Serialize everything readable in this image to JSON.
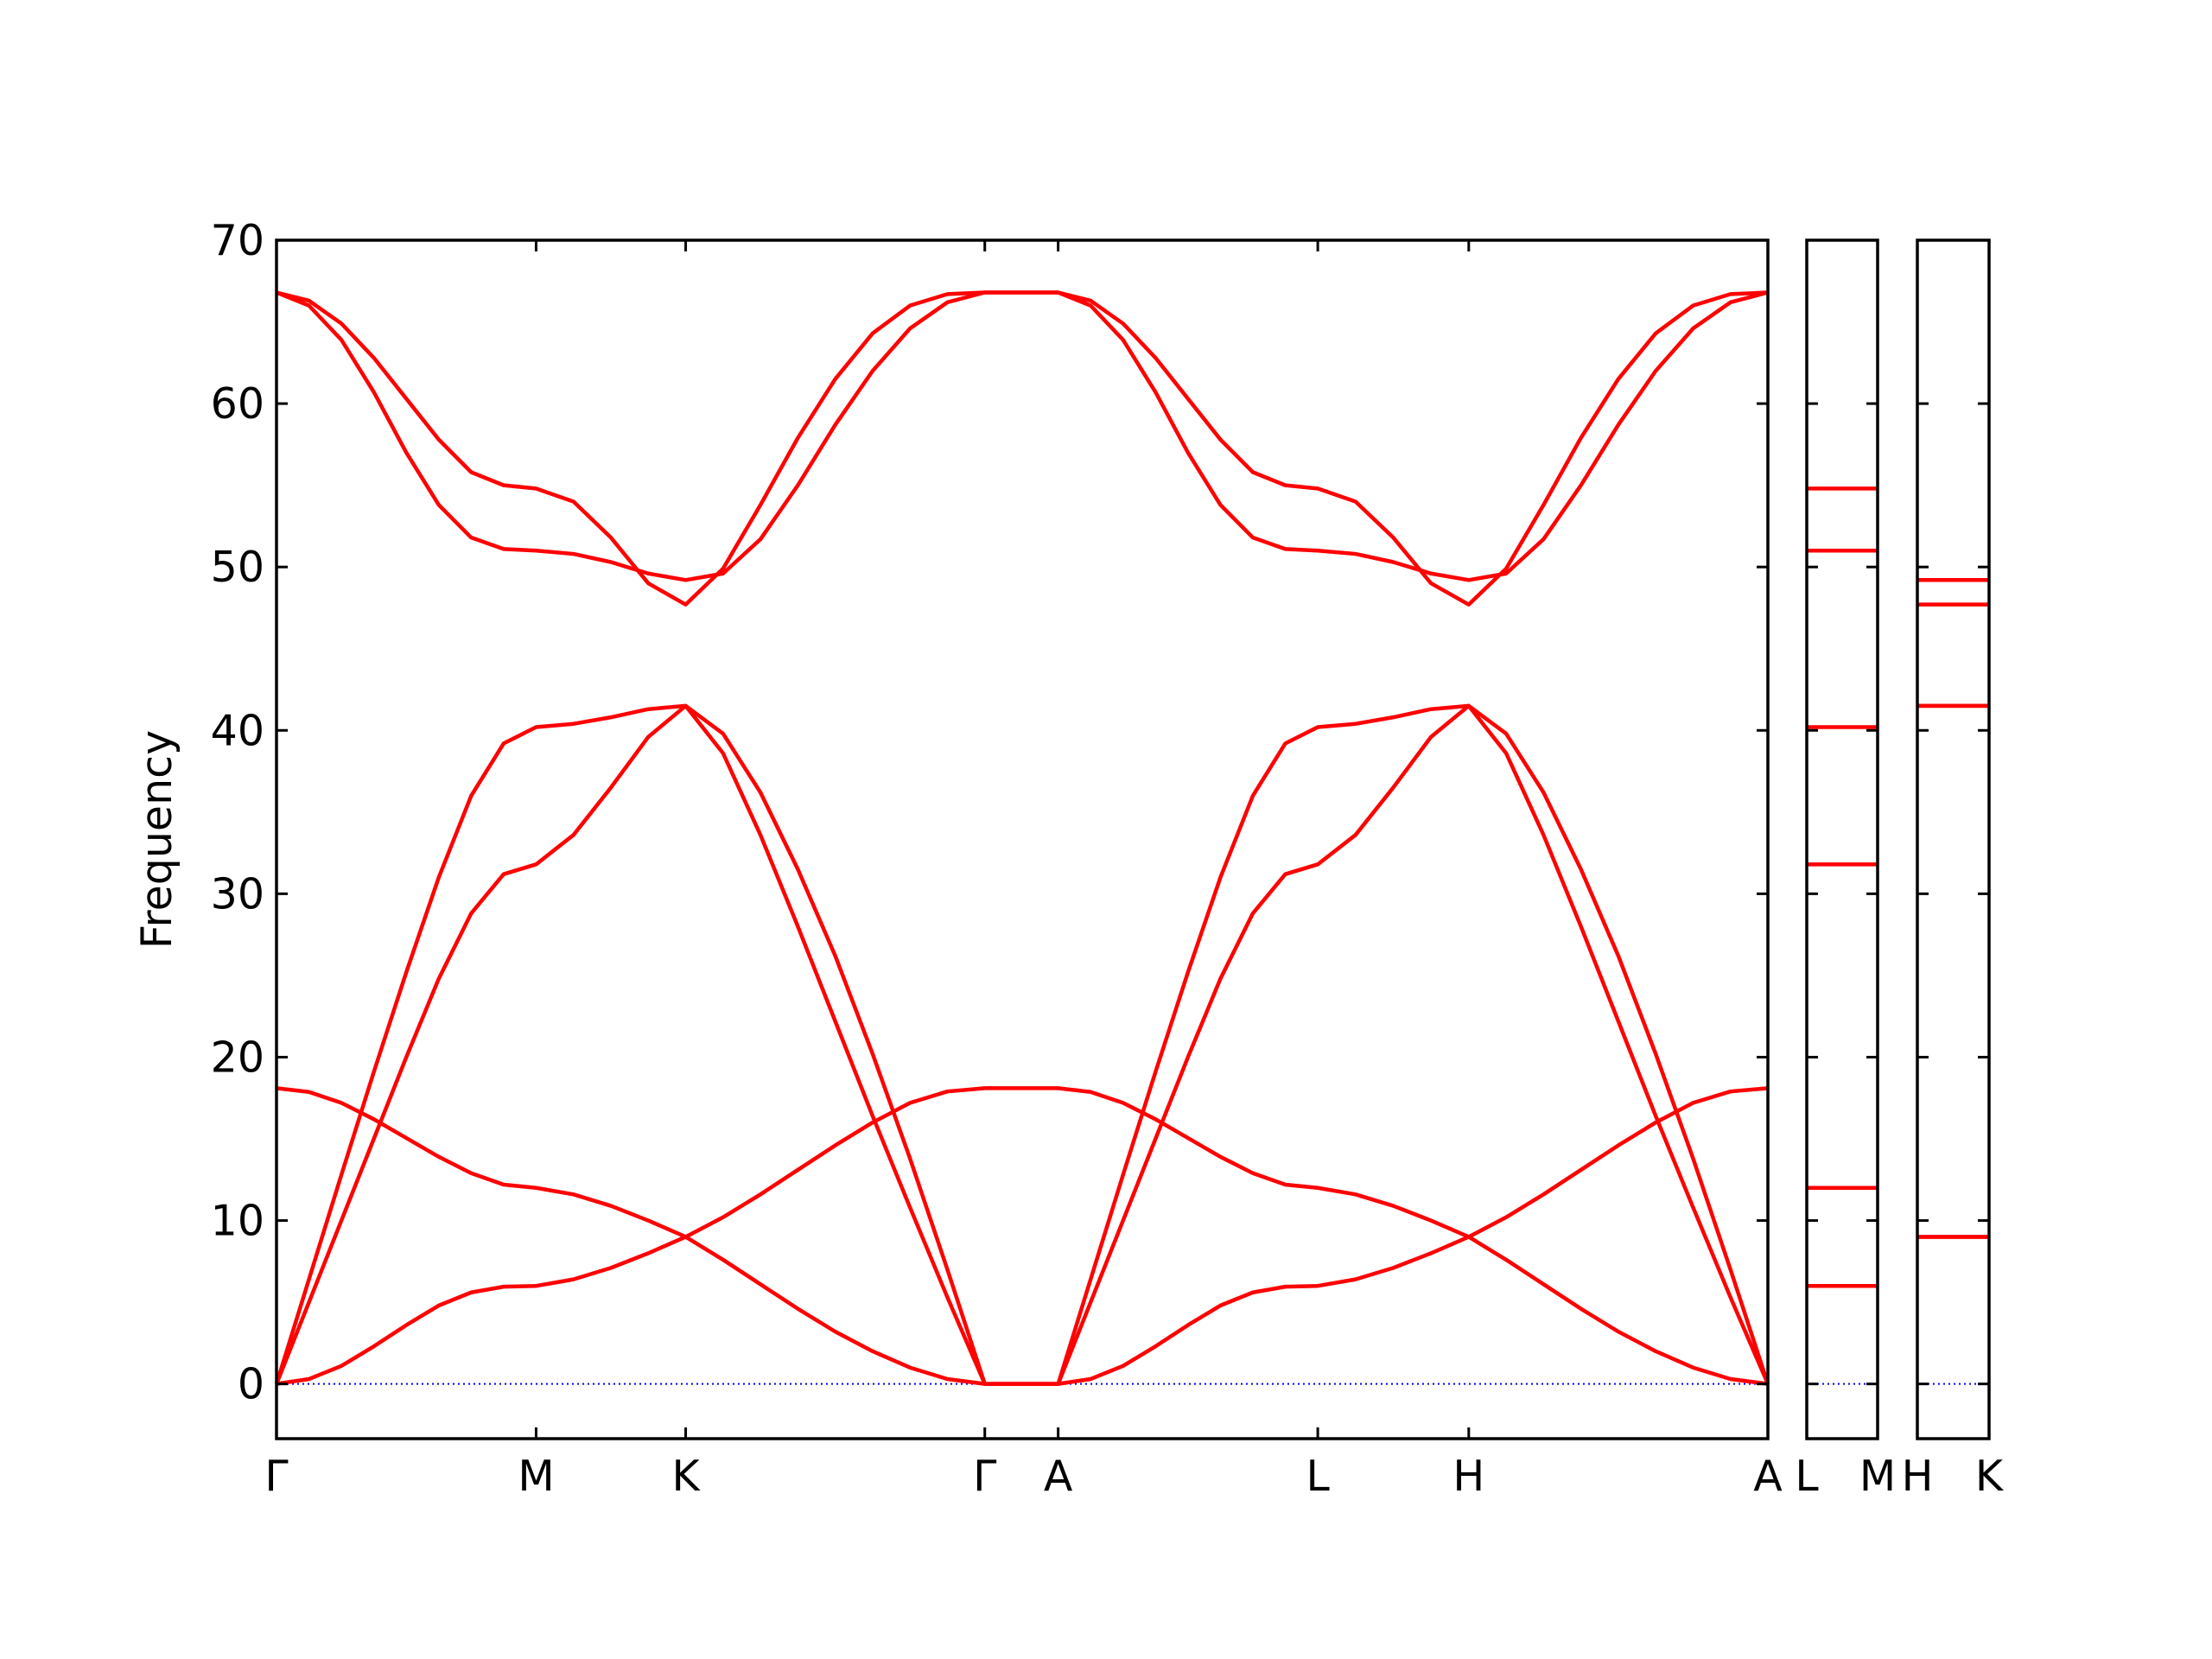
{
  "chart_data": [
    {
      "type": "line",
      "ylabel": "Frequency",
      "x": [
        0,
        0.23,
        0.46,
        0.69,
        0.92,
        1.15,
        1.38,
        1.61,
        1.84,
        2.105,
        2.37,
        2.635,
        2.9,
        3.165,
        3.43,
        3.695,
        3.96,
        4.225,
        4.49,
        4.755,
        5.02,
        5.54,
        5.77,
        6.0,
        6.23,
        6.46,
        6.69,
        6.92,
        7.15,
        7.38,
        7.6475,
        7.915,
        8.1825,
        8.45,
        8.715,
        8.98,
        9.245,
        9.51,
        9.775,
        10.04,
        10.305,
        10.57
      ],
      "xlim": [
        0,
        10.57
      ],
      "xticks": [
        {
          "value": 0,
          "label": "Γ"
        },
        {
          "value": 1.84,
          "label": "M"
        },
        {
          "value": 2.9,
          "label": "K"
        },
        {
          "value": 5.02,
          "label": "Γ"
        },
        {
          "value": 5.54,
          "label": "A"
        },
        {
          "value": 7.38,
          "label": "L"
        },
        {
          "value": 8.45,
          "label": "H"
        },
        {
          "value": 10.57,
          "label": "A"
        }
      ],
      "ylim": [
        -3.35,
        70
      ],
      "yticks": [
        0,
        10,
        20,
        30,
        40,
        50,
        60,
        70
      ],
      "hline": 0,
      "hline_color": "#0000ff",
      "series": [
        {
          "color": "#ff0000",
          "values": [
            0,
            6.4,
            12.8,
            19.1,
            25.2,
            31.0,
            36.0,
            39.2,
            40.2,
            40.4,
            40.8,
            41.3,
            41.5,
            39.8,
            36.2,
            31.5,
            26.2,
            20.2,
            13.8,
            7.0,
            0,
            0,
            6.4,
            12.8,
            19.1,
            25.2,
            31.0,
            36.0,
            39.2,
            40.2,
            40.4,
            40.8,
            41.3,
            41.5,
            39.8,
            36.2,
            31.5,
            26.2,
            20.2,
            13.8,
            7.0,
            0
          ]
        },
        {
          "color": "#ff0000",
          "values": [
            0,
            5,
            10,
            15,
            20,
            24.8,
            28.8,
            31.2,
            31.8,
            33.6,
            36.5,
            39.6,
            41.5,
            38.6,
            33.6,
            28.0,
            22.2,
            16.4,
            10.8,
            5.3,
            0,
            0,
            5,
            10,
            15,
            20,
            24.8,
            28.8,
            31.2,
            31.8,
            33.6,
            36.5,
            39.6,
            41.5,
            38.6,
            33.6,
            28.0,
            22.2,
            16.4,
            10.8,
            5.3,
            0
          ]
        },
        {
          "color": "#ff0000",
          "values": [
            0,
            0.3,
            1.1,
            2.3,
            3.6,
            4.8,
            5.6,
            5.95,
            6.0,
            6.4,
            7.1,
            8.0,
            9.0,
            10.2,
            11.6,
            13.1,
            14.6,
            16.0,
            17.2,
            17.9,
            18.1,
            18.1,
            17.87,
            17.2,
            16.2,
            15.05,
            13.9,
            12.9,
            12.2,
            12.0,
            11.6,
            10.9,
            10.0,
            9.0,
            7.6,
            6.1,
            4.6,
            3.2,
            2.0,
            1.0,
            0.3,
            0
          ]
        },
        {
          "color": "#ff0000",
          "values": [
            18.1,
            17.87,
            17.2,
            16.2,
            15.05,
            13.9,
            12.9,
            12.2,
            12.0,
            11.6,
            10.9,
            10.0,
            9.0,
            7.6,
            6.1,
            4.6,
            3.2,
            2.0,
            1.0,
            0.3,
            0,
            0,
            0.3,
            1.1,
            2.3,
            3.6,
            4.8,
            5.6,
            5.95,
            6.0,
            6.4,
            7.1,
            8.0,
            9.0,
            10.2,
            11.6,
            13.1,
            14.6,
            16.0,
            17.2,
            17.9,
            18.1
          ]
        },
        {
          "color": "#ff0000",
          "values": [
            66.8,
            66.3,
            64.9,
            62.8,
            60.3,
            57.8,
            55.8,
            55.0,
            54.8,
            54.0,
            51.8,
            49.0,
            47.7,
            49.9,
            53.8,
            57.9,
            61.5,
            64.3,
            66.0,
            66.7,
            66.8,
            66.8,
            66.3,
            64.9,
            62.8,
            60.3,
            57.8,
            55.8,
            55.0,
            54.8,
            54.0,
            51.8,
            49.0,
            47.7,
            49.9,
            53.8,
            57.9,
            61.5,
            64.3,
            66.0,
            66.7,
            66.8
          ]
        },
        {
          "color": "#ff0000",
          "values": [
            66.8,
            66.0,
            63.9,
            60.7,
            57.0,
            53.8,
            51.8,
            51.1,
            51.0,
            50.8,
            50.3,
            49.6,
            49.2,
            49.6,
            51.7,
            55.0,
            58.7,
            62.0,
            64.6,
            66.2,
            66.8,
            66.8,
            66.0,
            63.9,
            60.7,
            57.0,
            53.8,
            51.8,
            51.1,
            51.0,
            50.8,
            50.3,
            49.6,
            49.2,
            49.6,
            51.7,
            55.0,
            58.7,
            62.0,
            64.6,
            66.2,
            66.8
          ]
        }
      ]
    },
    {
      "type": "line",
      "ytick_labels": false,
      "x": [
        0,
        1
      ],
      "xlim": [
        0,
        1
      ],
      "xticks": [
        {
          "value": 0,
          "label": "L"
        },
        {
          "value": 1,
          "label": "M"
        }
      ],
      "ylim": [
        -3.35,
        70
      ],
      "yticks": [
        0,
        10,
        20,
        30,
        40,
        50,
        60,
        70
      ],
      "hline": 0,
      "hline_color": "#0000ff",
      "series": [
        {
          "color": "#ff0000",
          "values": [
            40.2,
            40.2
          ]
        },
        {
          "color": "#ff0000",
          "values": [
            31.8,
            31.8
          ]
        },
        {
          "color": "#ff0000",
          "values": [
            12.0,
            12.0
          ]
        },
        {
          "color": "#ff0000",
          "values": [
            6.0,
            6.0
          ]
        },
        {
          "color": "#ff0000",
          "values": [
            54.8,
            54.8
          ]
        },
        {
          "color": "#ff0000",
          "values": [
            51.0,
            51.0
          ]
        }
      ]
    },
    {
      "type": "line",
      "ytick_labels": false,
      "x": [
        0,
        1
      ],
      "xlim": [
        0,
        1
      ],
      "xticks": [
        {
          "value": 0,
          "label": "H"
        },
        {
          "value": 1,
          "label": "K"
        }
      ],
      "ylim": [
        -3.35,
        70
      ],
      "yticks": [
        0,
        10,
        20,
        30,
        40,
        50,
        60,
        70
      ],
      "hline": 0,
      "hline_color": "#0000ff",
      "series": [
        {
          "color": "#ff0000",
          "values": [
            41.5,
            41.5
          ]
        },
        {
          "color": "#ff0000",
          "values": [
            41.5,
            41.5
          ]
        },
        {
          "color": "#ff0000",
          "values": [
            9.0,
            9.0
          ]
        },
        {
          "color": "#ff0000",
          "values": [
            9.0,
            9.0
          ]
        },
        {
          "color": "#ff0000",
          "values": [
            47.7,
            47.7
          ]
        },
        {
          "color": "#ff0000",
          "values": [
            49.2,
            49.2
          ]
        }
      ]
    }
  ]
}
